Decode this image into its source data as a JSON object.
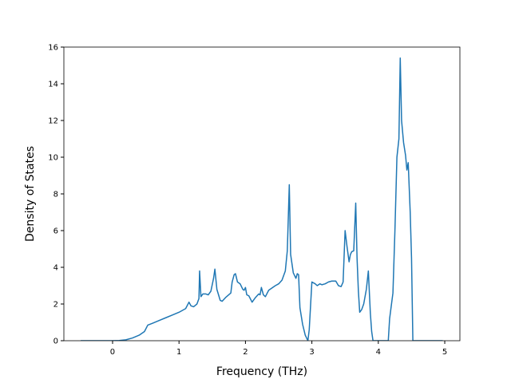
{
  "chart_data": {
    "type": "line",
    "x_label": "Frequency (THz)",
    "y_label": "Density of States",
    "x": [
      -0.48,
      0,
      0.1,
      0.2,
      0.3,
      0.4,
      0.48,
      0.53,
      0.6,
      0.7,
      0.8,
      0.9,
      1.0,
      1.1,
      1.15,
      1.18,
      1.22,
      1.27,
      1.3,
      1.31,
      1.33,
      1.36,
      1.4,
      1.44,
      1.48,
      1.52,
      1.54,
      1.57,
      1.62,
      1.65,
      1.7,
      1.78,
      1.8,
      1.83,
      1.85,
      1.88,
      1.92,
      1.96,
      1.98,
      2.0,
      2.02,
      2.05,
      2.1,
      2.15,
      2.2,
      2.22,
      2.24,
      2.27,
      2.3,
      2.35,
      2.45,
      2.5,
      2.55,
      2.6,
      2.63,
      2.66,
      2.68,
      2.72,
      2.76,
      2.78,
      2.8,
      2.82,
      2.86,
      2.9,
      2.94,
      2.96,
      3.0,
      3.05,
      3.08,
      3.12,
      3.15,
      3.2,
      3.25,
      3.3,
      3.36,
      3.4,
      3.44,
      3.47,
      3.5,
      3.53,
      3.56,
      3.58,
      3.6,
      3.63,
      3.66,
      3.68,
      3.7,
      3.72,
      3.75,
      3.78,
      3.82,
      3.85,
      3.88,
      3.9,
      3.92,
      4.1,
      4.15,
      4.17,
      4.22,
      4.25,
      4.28,
      4.31,
      4.33,
      4.35,
      4.38,
      4.41,
      4.43,
      4.45,
      4.48,
      4.5,
      4.52,
      4.97
    ],
    "series": [
      {
        "color": "#1f77b4",
        "values": [
          0,
          0,
          0.01,
          0.05,
          0.15,
          0.3,
          0.5,
          0.85,
          0.95,
          1.1,
          1.25,
          1.4,
          1.55,
          1.75,
          2.1,
          1.9,
          1.85,
          2.0,
          2.3,
          3.8,
          2.4,
          2.55,
          2.55,
          2.5,
          2.7,
          3.4,
          3.9,
          2.8,
          2.2,
          2.15,
          2.35,
          2.6,
          3.2,
          3.6,
          3.65,
          3.2,
          3.1,
          2.8,
          2.75,
          2.9,
          2.5,
          2.45,
          2.1,
          2.35,
          2.55,
          2.5,
          2.9,
          2.5,
          2.4,
          2.75,
          3.0,
          3.1,
          3.3,
          3.8,
          4.9,
          8.5,
          4.7,
          3.7,
          3.4,
          3.65,
          3.6,
          1.8,
          0.9,
          0.3,
          0,
          0.6,
          3.2,
          3.1,
          3.0,
          3.1,
          3.05,
          3.1,
          3.2,
          3.25,
          3.25,
          3.0,
          2.95,
          3.2,
          6.0,
          5.1,
          4.3,
          4.7,
          4.85,
          4.9,
          7.5,
          4.5,
          2.7,
          1.55,
          1.7,
          2.0,
          2.8,
          3.8,
          1.5,
          0.5,
          0,
          0,
          0,
          1.2,
          2.6,
          6,
          10,
          11,
          15.4,
          12,
          10.8,
          10.1,
          9.3,
          9.7,
          7,
          4.5,
          0,
          0
        ]
      }
    ],
    "xlim": [
      -0.733,
      5.228
    ],
    "xticks": [
      0,
      1,
      2,
      3,
      4,
      5
    ],
    "ylim": [
      0,
      16
    ],
    "yticks": [
      0,
      2,
      4,
      6,
      8,
      10,
      12,
      14,
      16
    ],
    "grid": false
  }
}
